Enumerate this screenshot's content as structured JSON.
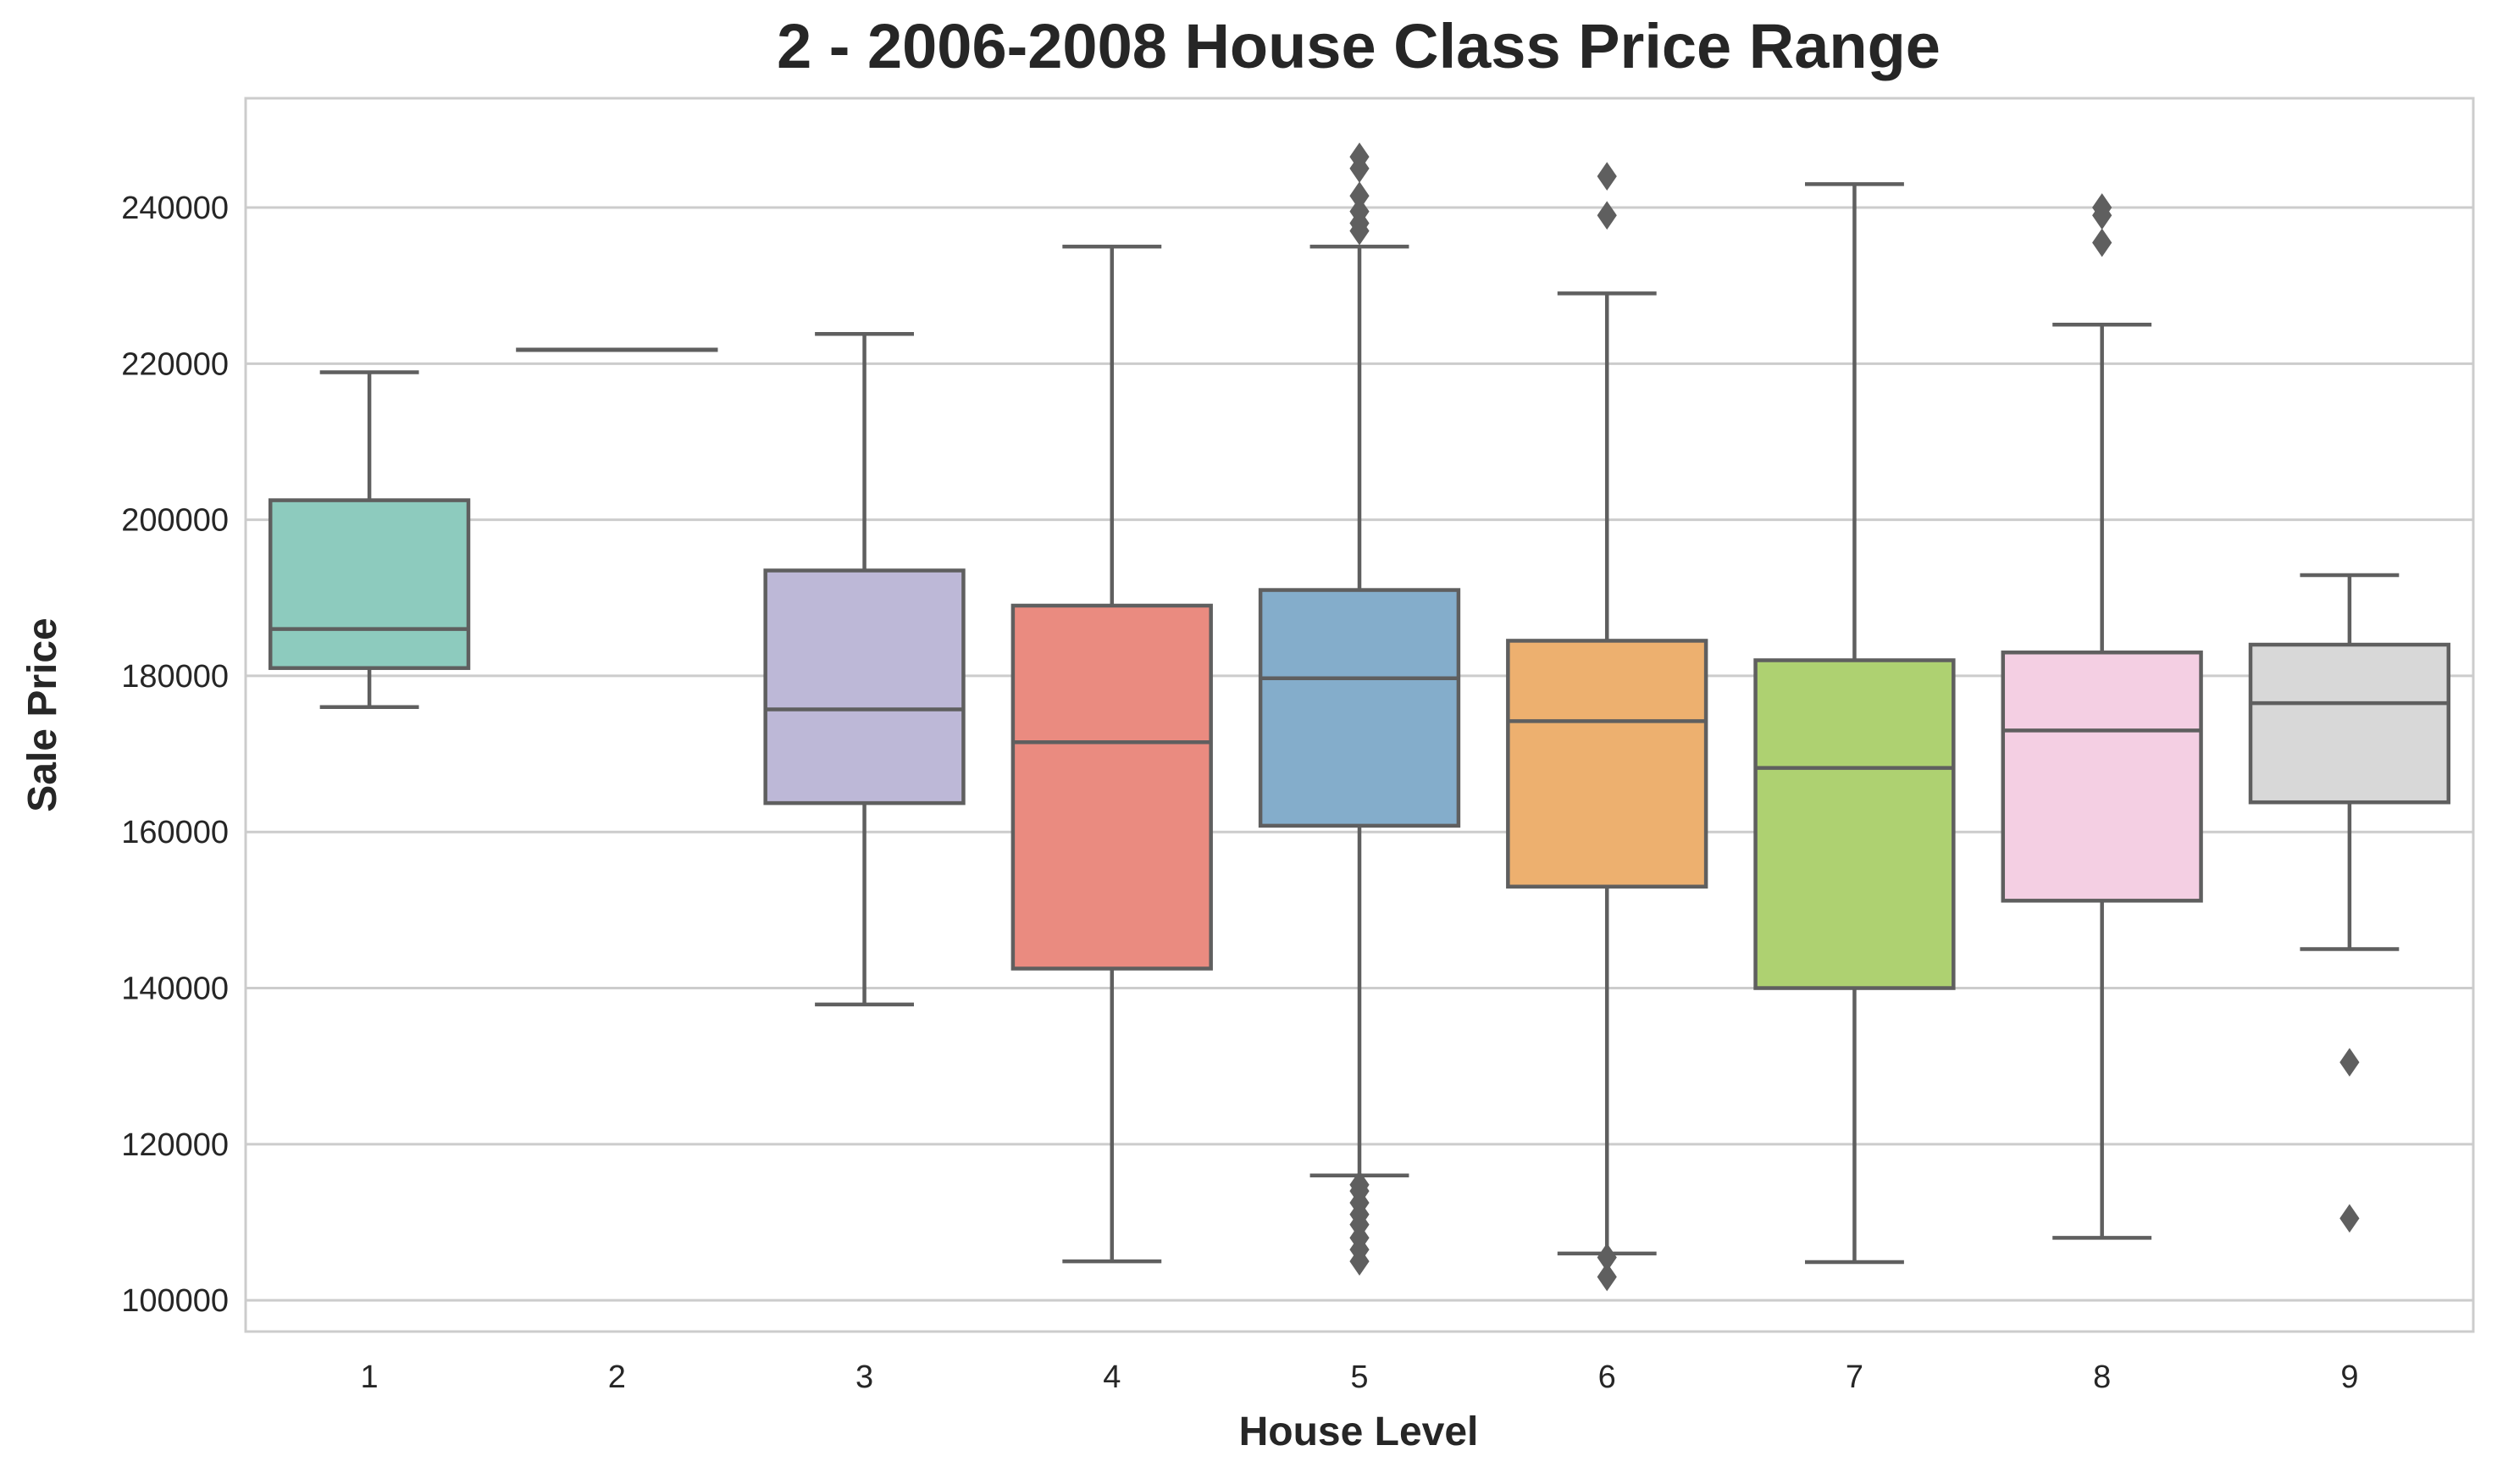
{
  "chart_data": {
    "type": "box",
    "title": "2 - 2006-2008 House Class Price Range",
    "xlabel": "House Level",
    "ylabel": "Sale Price",
    "ylim": [
      96000,
      254000
    ],
    "yticks": [
      100000,
      120000,
      140000,
      160000,
      180000,
      200000,
      220000,
      240000
    ],
    "grid": "horizontal",
    "categories": [
      "1",
      "2",
      "3",
      "4",
      "5",
      "6",
      "7",
      "8",
      "9"
    ],
    "boxes": [
      {
        "category": "1",
        "color": "#8dcbbe",
        "whisker_low": 176000,
        "q1": 181000,
        "median": 186000,
        "q3": 202500,
        "whisker_high": 218900,
        "outliers": []
      },
      {
        "category": "2",
        "color": "#fbfbb0",
        "whisker_low": 221800,
        "q1": 221800,
        "median": 221800,
        "q3": 221800,
        "whisker_high": 221800,
        "outliers": []
      },
      {
        "category": "3",
        "color": "#bdb8d7",
        "whisker_low": 137900,
        "q1": 163700,
        "median": 175700,
        "q3": 193500,
        "whisker_high": 223800,
        "outliers": []
      },
      {
        "category": "4",
        "color": "#ea8b80",
        "whisker_low": 105000,
        "q1": 142500,
        "median": 171500,
        "q3": 189000,
        "whisker_high": 235000,
        "outliers": []
      },
      {
        "category": "5",
        "color": "#84adcb",
        "whisker_low": 116000,
        "q1": 160800,
        "median": 179700,
        "q3": 191000,
        "whisker_high": 235000,
        "outliers": [
          105000,
          106500,
          108000,
          109700,
          111000,
          112500,
          114000,
          114800,
          237000,
          238000,
          239500,
          241500,
          245000,
          246500
        ]
      },
      {
        "category": "6",
        "color": "#edb06f",
        "whisker_low": 106000,
        "q1": 153000,
        "median": 174200,
        "q3": 184500,
        "whisker_high": 229000,
        "outliers": [
          103000,
          105500,
          239000,
          244000
        ]
      },
      {
        "category": "7",
        "color": "#aed171",
        "whisker_low": 104900,
        "q1": 140000,
        "median": 168200,
        "q3": 182000,
        "whisker_high": 243000,
        "outliers": []
      },
      {
        "category": "8",
        "color": "#f4cfe3",
        "whisker_low": 108000,
        "q1": 151200,
        "median": 173000,
        "q3": 183000,
        "whisker_high": 225000,
        "outliers": [
          235500,
          239000,
          240000
        ]
      },
      {
        "category": "9",
        "color": "#d8d8d8",
        "whisker_low": 145000,
        "q1": 163800,
        "median": 176500,
        "q3": 184000,
        "whisker_high": 192900,
        "outliers": [
          110500,
          130500
        ]
      }
    ]
  }
}
